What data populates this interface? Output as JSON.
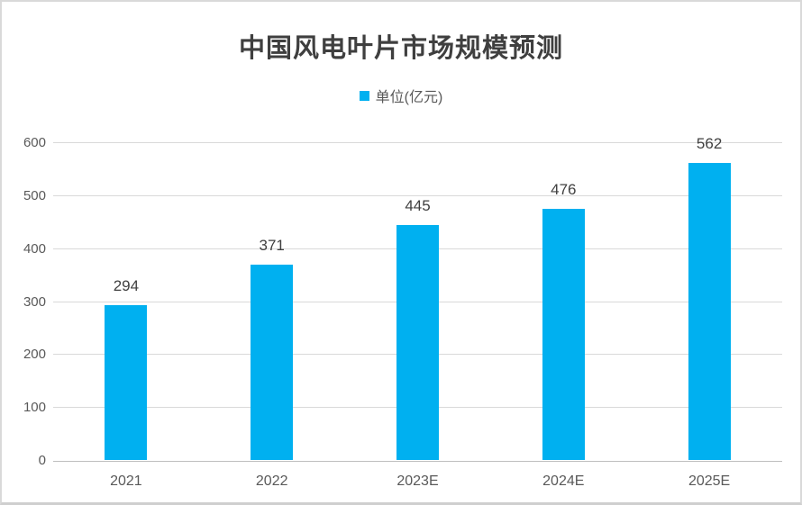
{
  "page": {
    "background_color": "#ffffff",
    "border_color": "#d9d9d9"
  },
  "chart_data": {
    "type": "bar",
    "title": "中国风电叶片市场规模预测",
    "legend": [
      {
        "label": "单位(亿元)",
        "color": "#00B0F0"
      }
    ],
    "legend_position": "top",
    "categories": [
      "2021",
      "2022",
      "2023E",
      "2024E",
      "2025E"
    ],
    "values": [
      294,
      371,
      445,
      476,
      562
    ],
    "data_labels_shown": true,
    "xlabel": "",
    "ylabel": "",
    "ylim": [
      0,
      600
    ],
    "ytick_step": 100,
    "yticks": [
      0,
      100,
      200,
      300,
      400,
      500,
      600
    ],
    "grid": true,
    "bar_color": "#00B0F0",
    "gridline_color": "#d9d9d9",
    "axis_line_color": "#bfbfbf",
    "title_color": "#3f3f3f",
    "axis_label_color": "#595959",
    "data_label_color": "#404040"
  }
}
